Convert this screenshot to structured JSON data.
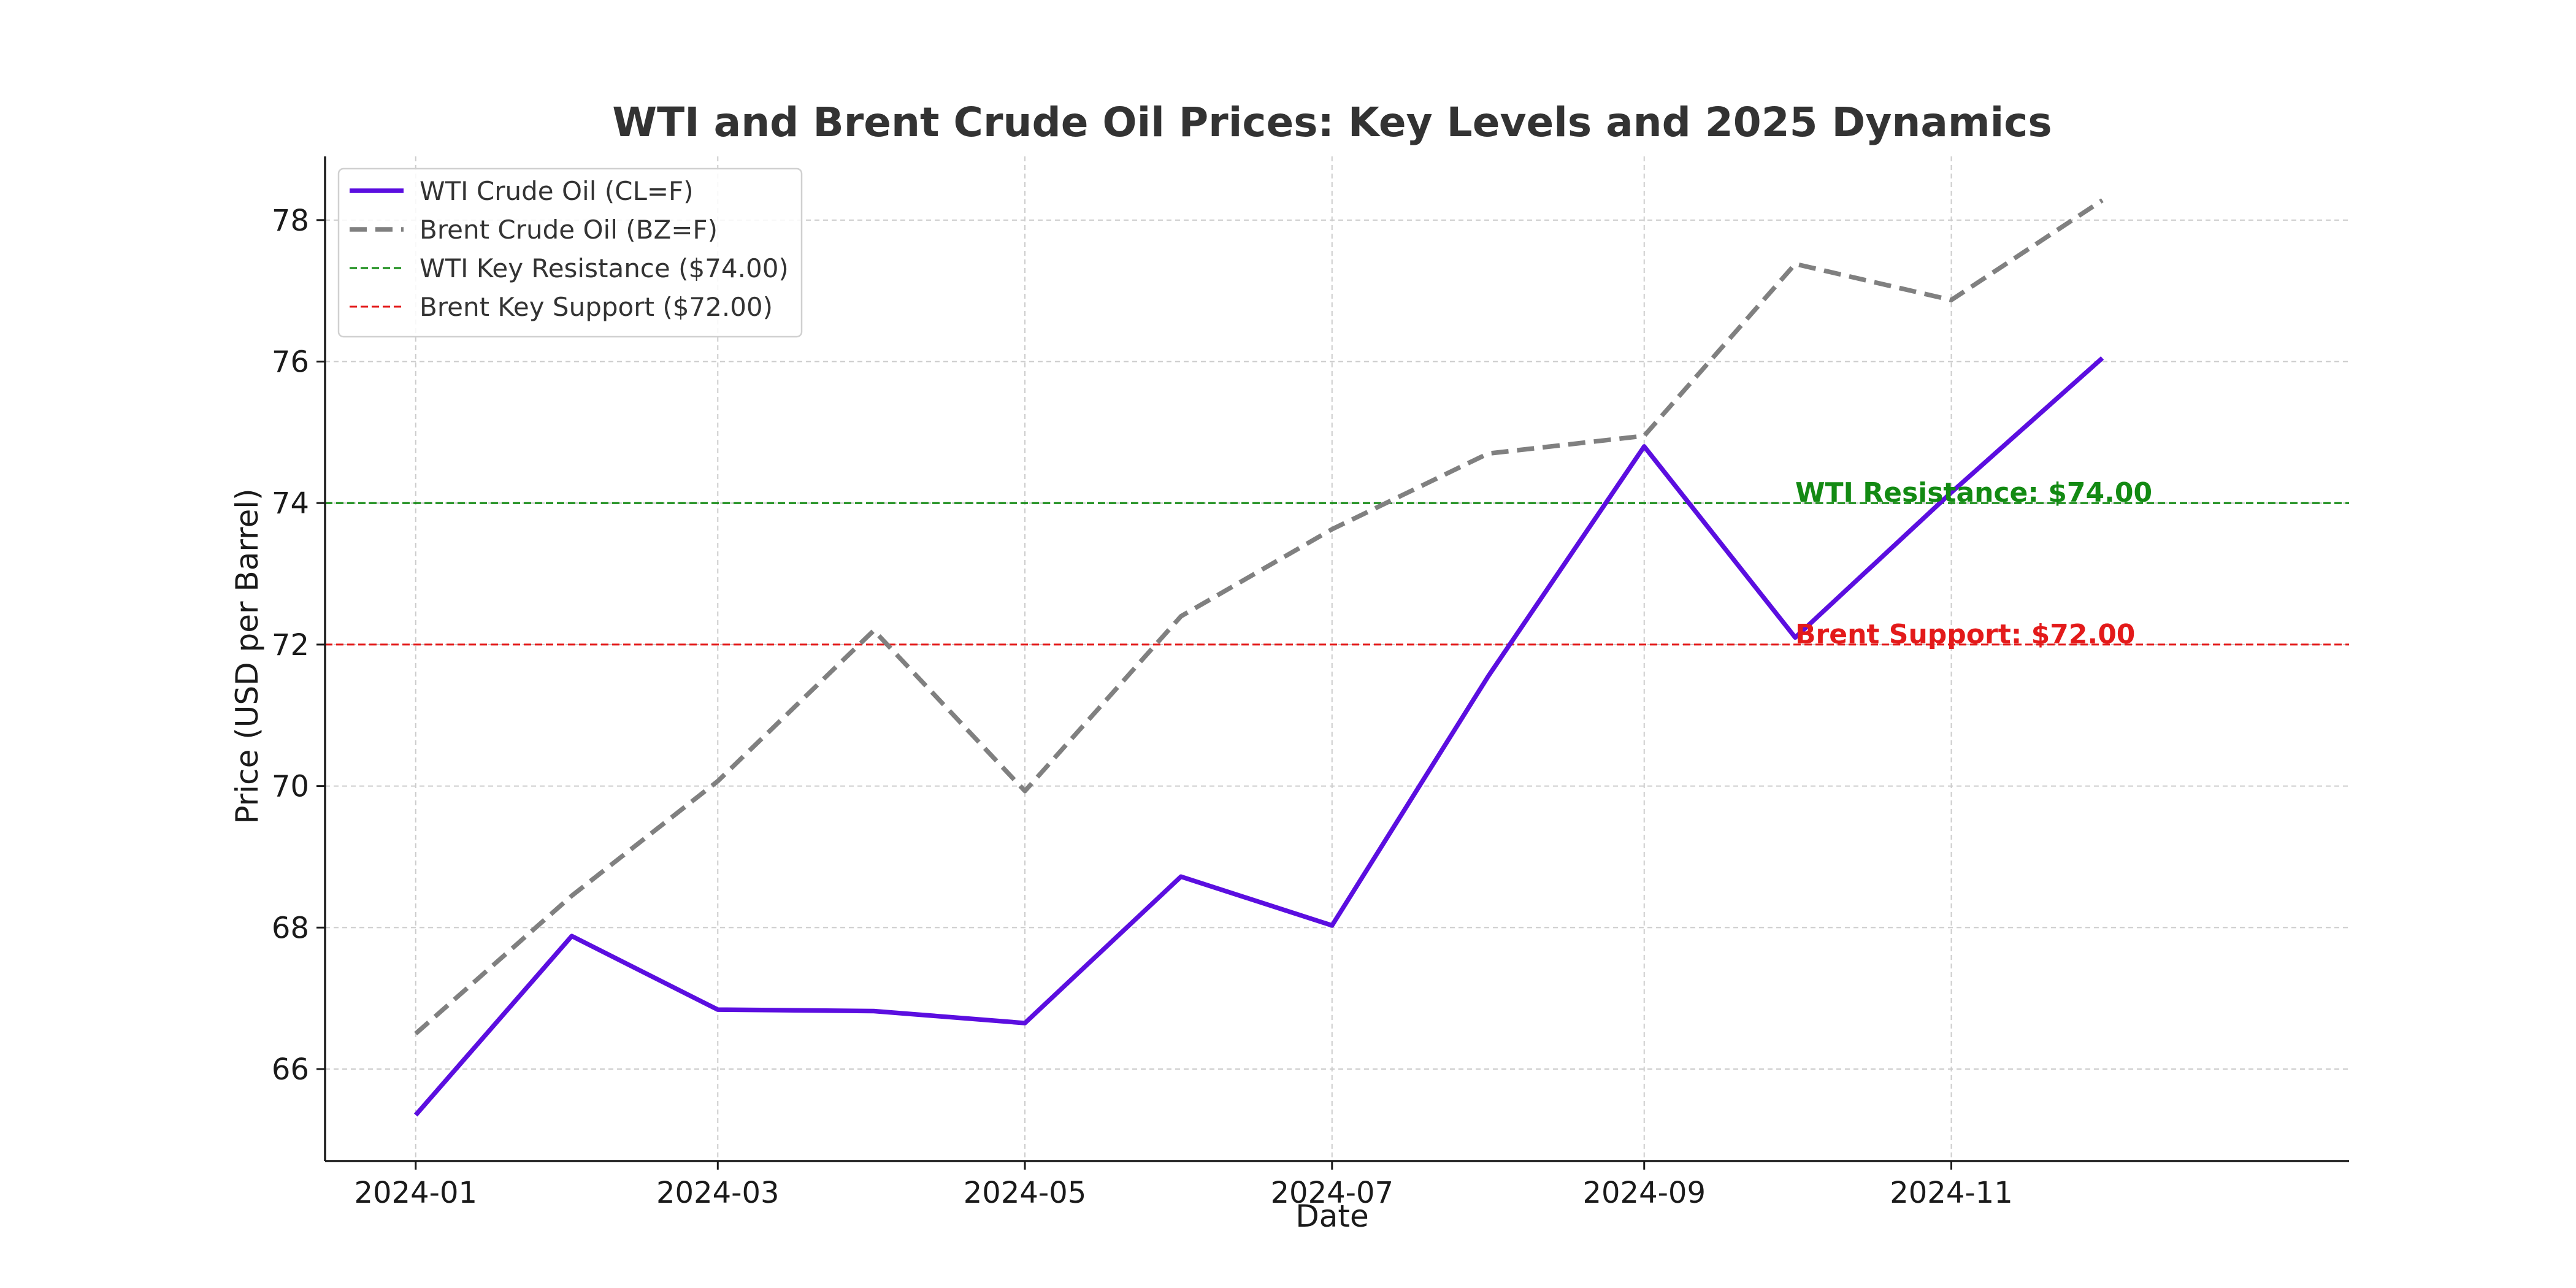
{
  "chart_data": {
    "type": "line",
    "title": "WTI and Brent Crude Oil Prices: Key Levels and 2025 Dynamics",
    "xlabel": "Date",
    "ylabel": "Price (USD per Barrel)",
    "x": [
      "2024-01-01",
      "2024-02-01",
      "2024-03-01",
      "2024-04-01",
      "2024-05-01",
      "2024-06-01",
      "2024-07-01",
      "2024-08-01",
      "2024-09-01",
      "2024-10-01",
      "2024-11-01",
      "2024-12-01"
    ],
    "x_ticks": [
      "2024-01",
      "2024-03",
      "2024-05",
      "2024-07",
      "2024-09",
      "2024-11"
    ],
    "x_range": [
      "2023-12-14",
      "2025-01-19"
    ],
    "y_ticks": [
      66,
      68,
      70,
      72,
      74,
      76,
      78
    ],
    "ylim": [
      64.7,
      78.9
    ],
    "grid": true,
    "legend_position": "top-left",
    "series": [
      {
        "name": "WTI Crude Oil (CL=F)",
        "color": "#5b0ee0",
        "style": "solid",
        "values": [
          65.35,
          67.88,
          66.84,
          66.82,
          66.65,
          68.72,
          68.03,
          71.55,
          74.8,
          72.1,
          74.15,
          76.05
        ]
      },
      {
        "name": "Brent Crude Oil (BZ=F)",
        "color": "#808080",
        "style": "dashed",
        "values": [
          66.5,
          68.45,
          70.07,
          72.2,
          69.93,
          72.4,
          73.63,
          74.7,
          74.95,
          77.38,
          76.87,
          78.28
        ]
      }
    ],
    "reference_lines": [
      {
        "name": "WTI Key Resistance ($74.00)",
        "value": 74.0,
        "color": "#138a13",
        "label": "WTI Resistance: $74.00",
        "label_x": "2024-10-01"
      },
      {
        "name": "Brent Key Support ($72.00)",
        "value": 72.0,
        "color": "#e31a1a",
        "label": "Brent Support: $72.00",
        "label_x": "2024-10-01"
      }
    ]
  }
}
